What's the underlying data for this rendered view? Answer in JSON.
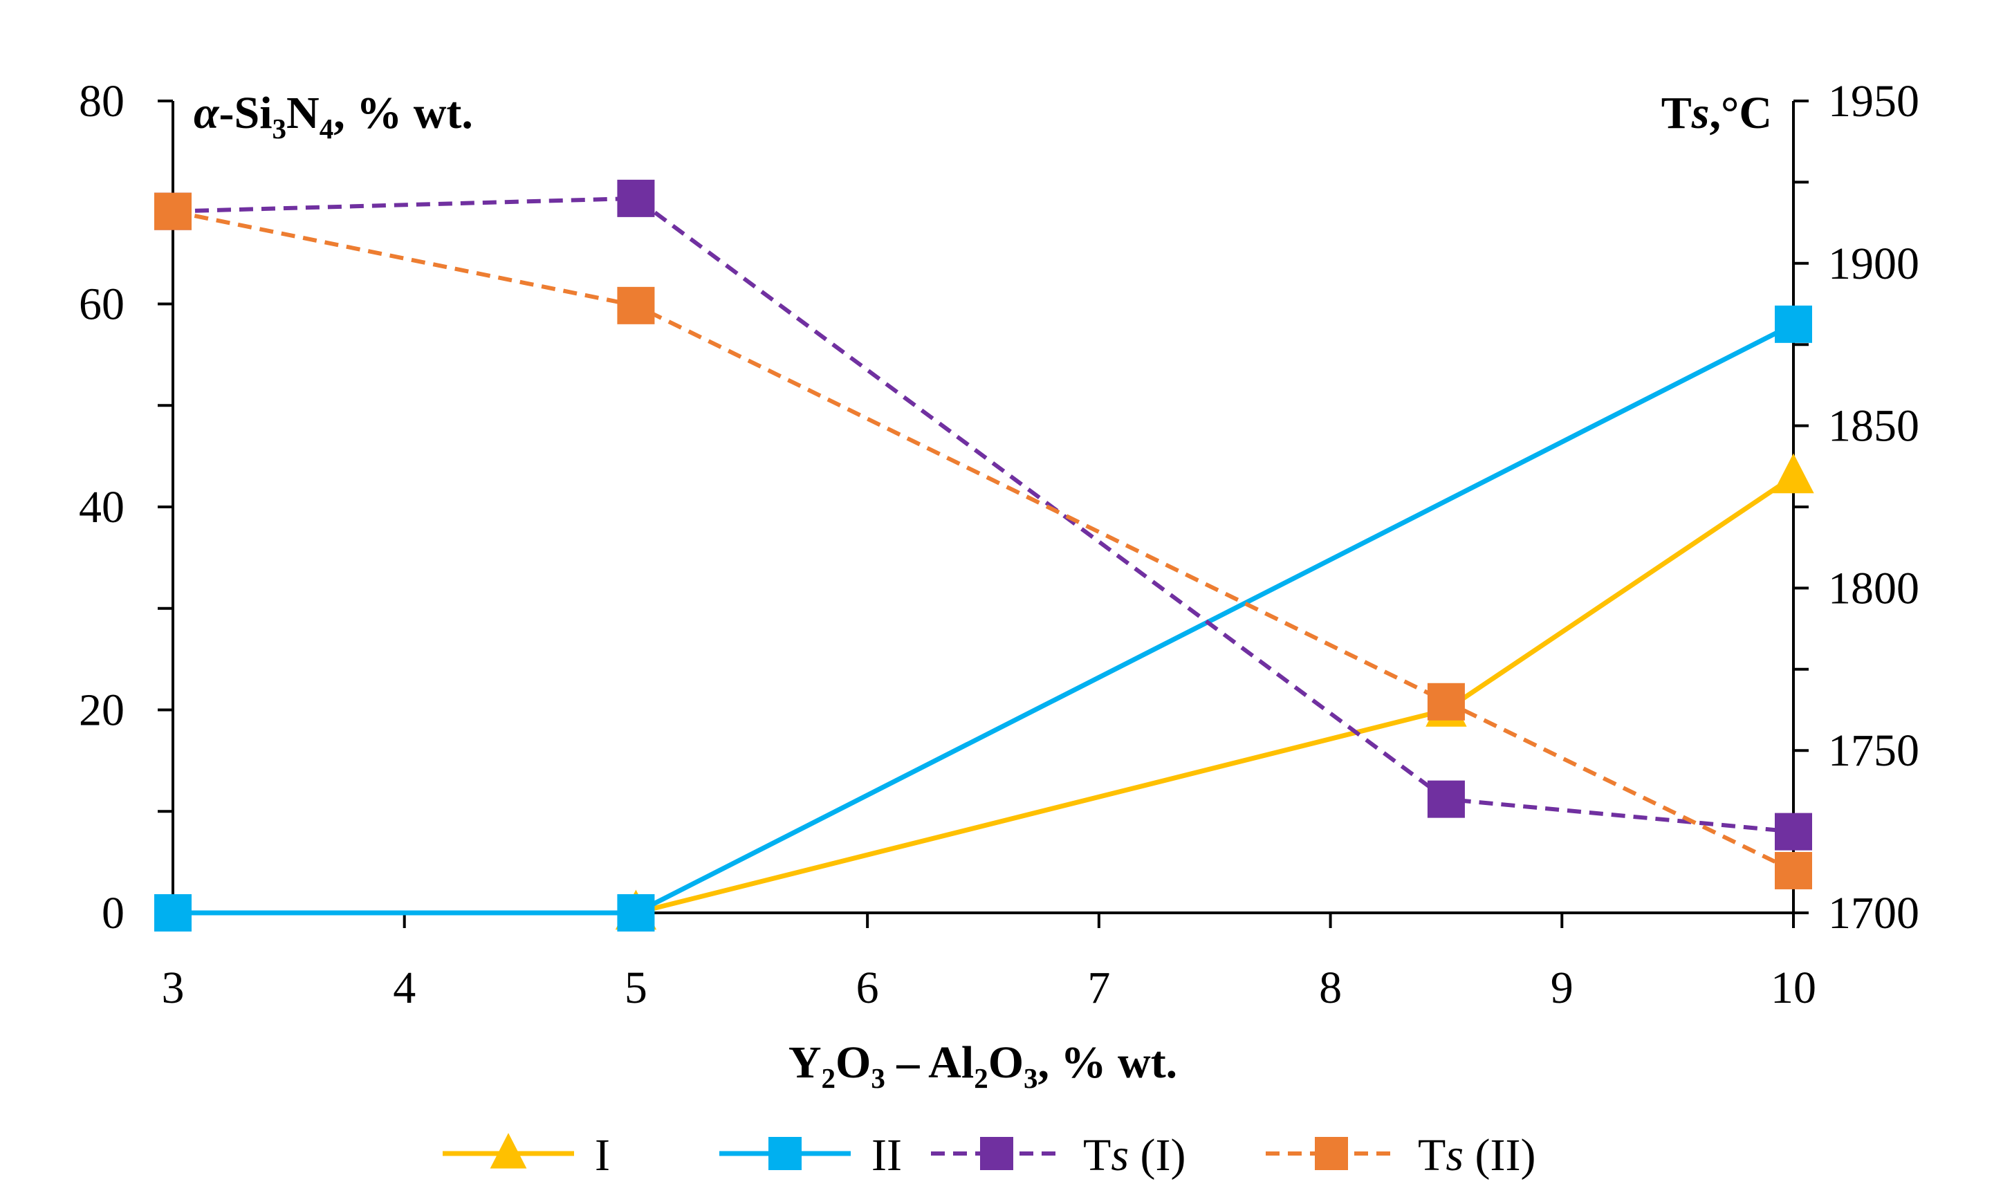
{
  "chart_data": {
    "type": "line",
    "x_axis": {
      "label": "Y2O3 – Al2O3, % wt.",
      "label_parts": [
        {
          "text": "Y",
          "sub": false
        },
        {
          "text": "2",
          "sub": true
        },
        {
          "text": "O",
          "sub": false
        },
        {
          "text": "3",
          "sub": true
        },
        {
          "text": " – Al",
          "sub": false
        },
        {
          "text": "2",
          "sub": true
        },
        {
          "text": "O",
          "sub": false
        },
        {
          "text": "3",
          "sub": true
        },
        {
          "text": ", % wt.",
          "sub": false
        }
      ],
      "range": [
        3,
        10
      ],
      "ticks": [
        3,
        4,
        5,
        6,
        7,
        8,
        9,
        10
      ]
    },
    "y_left_axis": {
      "label": "α-Si3N4, % wt.",
      "label_parts": [
        {
          "text": "α",
          "sub": false,
          "italic": true
        },
        {
          "text": "-Si",
          "sub": false
        },
        {
          "text": "3",
          "sub": true
        },
        {
          "text": "N",
          "sub": false
        },
        {
          "text": "4",
          "sub": true
        },
        {
          "text": ", % wt.",
          "sub": false
        }
      ],
      "range": [
        0,
        80
      ],
      "ticks": [
        0,
        20,
        40,
        60,
        80
      ],
      "minor_ticks": [
        10,
        30,
        50,
        70
      ]
    },
    "y_right_axis": {
      "label": "Ts,°C",
      "label_parts": [
        {
          "text": "T",
          "sub": false
        },
        {
          "text": "s",
          "sub": false,
          "italic": true
        },
        {
          "text": ",°C",
          "sub": false
        }
      ],
      "range": [
        1700,
        1950
      ],
      "ticks": [
        1700,
        1750,
        1800,
        1850,
        1900,
        1950
      ],
      "minor_ticks": [
        1725,
        1775,
        1825,
        1875,
        1925
      ]
    },
    "series": [
      {
        "name": "I",
        "legend_parts": [
          {
            "text": "I",
            "italic": false
          }
        ],
        "axis": "left",
        "color": "#FFC000",
        "marker": "triangle",
        "dashed": false,
        "x": [
          5,
          8.5,
          10
        ],
        "y": [
          0,
          20,
          43
        ]
      },
      {
        "name": "II",
        "legend_parts": [
          {
            "text": "II",
            "italic": false
          }
        ],
        "axis": "left",
        "color": "#00B0F0",
        "marker": "square",
        "dashed": false,
        "x": [
          3,
          5,
          10
        ],
        "y": [
          0,
          0,
          58
        ]
      },
      {
        "name": "Ts (I)",
        "legend_parts": [
          {
            "text": "T",
            "italic": false
          },
          {
            "text": "s",
            "italic": true
          },
          {
            "text": " (I)",
            "italic": false
          }
        ],
        "axis": "right",
        "color": "#7030A0",
        "marker": "square",
        "dashed": true,
        "x": [
          3,
          5,
          8.5,
          10
        ],
        "y": [
          1916,
          1920,
          1735,
          1725
        ]
      },
      {
        "name": "Ts (II)",
        "legend_parts": [
          {
            "text": "T",
            "italic": false
          },
          {
            "text": "s",
            "italic": true
          },
          {
            "text": " (II)",
            "italic": false
          }
        ],
        "axis": "right",
        "color": "#ED7D31",
        "marker": "square",
        "dashed": true,
        "x": [
          3,
          5,
          8.5,
          10
        ],
        "y": [
          1916,
          1887,
          1765,
          1713
        ]
      }
    ],
    "legend_position": "bottom",
    "grid": false
  }
}
